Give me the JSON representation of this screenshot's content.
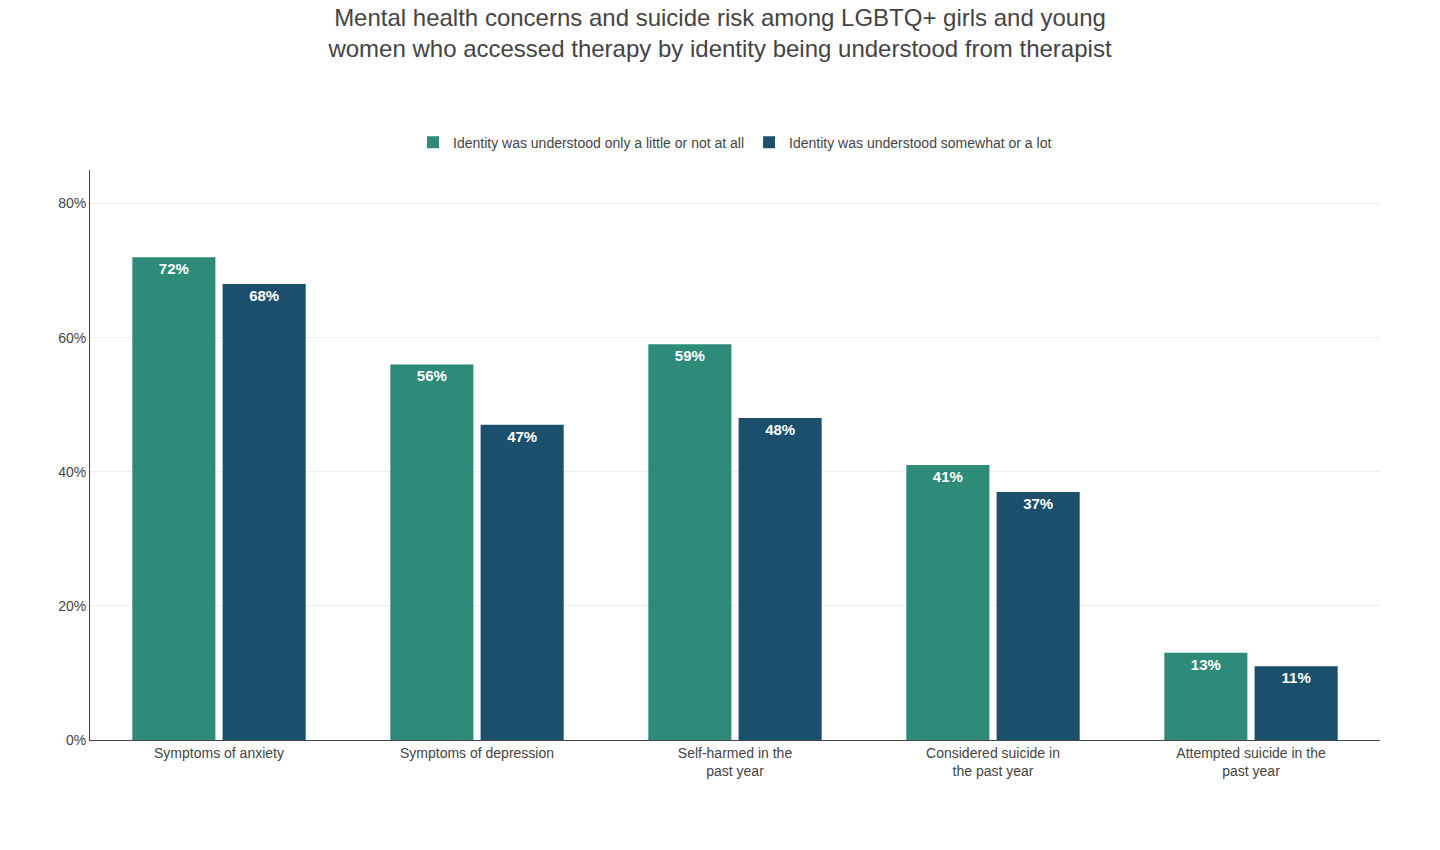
{
  "chart_data": {
    "type": "bar",
    "title": "Mental health concerns and suicide risk among LGBTQ+ girls and young\nwomen who accessed therapy by identity being understood from therapist",
    "categories": [
      "Symptoms of anxiety",
      "Symptoms of depression",
      "Self-harmed in the\npast year",
      "Considered suicide in\nthe past year",
      "Attempted suicide in the\npast year"
    ],
    "series": [
      {
        "name": "Identity was understood only a little or not at all",
        "color": "#2e8b7a",
        "values": [
          72,
          56,
          59,
          41,
          13
        ],
        "value_labels": [
          "72%",
          "56%",
          "59%",
          "41%",
          "13%"
        ]
      },
      {
        "name": "Identity was understood somewhat or a lot",
        "color": "#1b4f6b",
        "values": [
          68,
          47,
          48,
          37,
          11
        ],
        "value_labels": [
          "68%",
          "47%",
          "48%",
          "37%",
          "11%"
        ]
      }
    ],
    "ylim": [
      0,
      85
    ],
    "yticks": [
      {
        "value": 0,
        "label": "0%"
      },
      {
        "value": 20,
        "label": "20%"
      },
      {
        "value": 40,
        "label": "40%"
      },
      {
        "value": 60,
        "label": "60%"
      },
      {
        "value": 80,
        "label": "80%"
      }
    ],
    "grid": true,
    "legend": "top",
    "data_labels": true
  }
}
